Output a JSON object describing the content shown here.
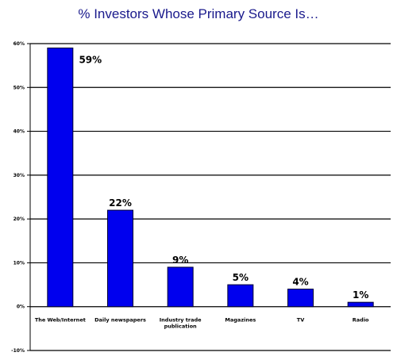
{
  "chart_data": {
    "type": "bar",
    "title": "% Investors Whose Primary Source Is…",
    "categories": [
      [
        "The Web/Internet"
      ],
      [
        "Daily newspapers"
      ],
      [
        "Industry trade",
        "publication"
      ],
      [
        "Magazines"
      ],
      [
        "TV"
      ],
      [
        "Radio"
      ]
    ],
    "values": [
      59,
      22,
      9,
      5,
      4,
      1
    ],
    "data_labels": [
      "59%",
      "22%",
      "9%",
      "5%",
      "4%",
      "1%"
    ],
    "yticks": [
      60,
      50,
      40,
      30,
      20,
      10,
      0,
      -10
    ],
    "ytick_labels": [
      "60%",
      "50%",
      "40%",
      "30%",
      "20%",
      "10%",
      "0%",
      "-10%"
    ],
    "ylim": [
      -10,
      60
    ],
    "grid": true,
    "bar_color": "#0000ee"
  }
}
